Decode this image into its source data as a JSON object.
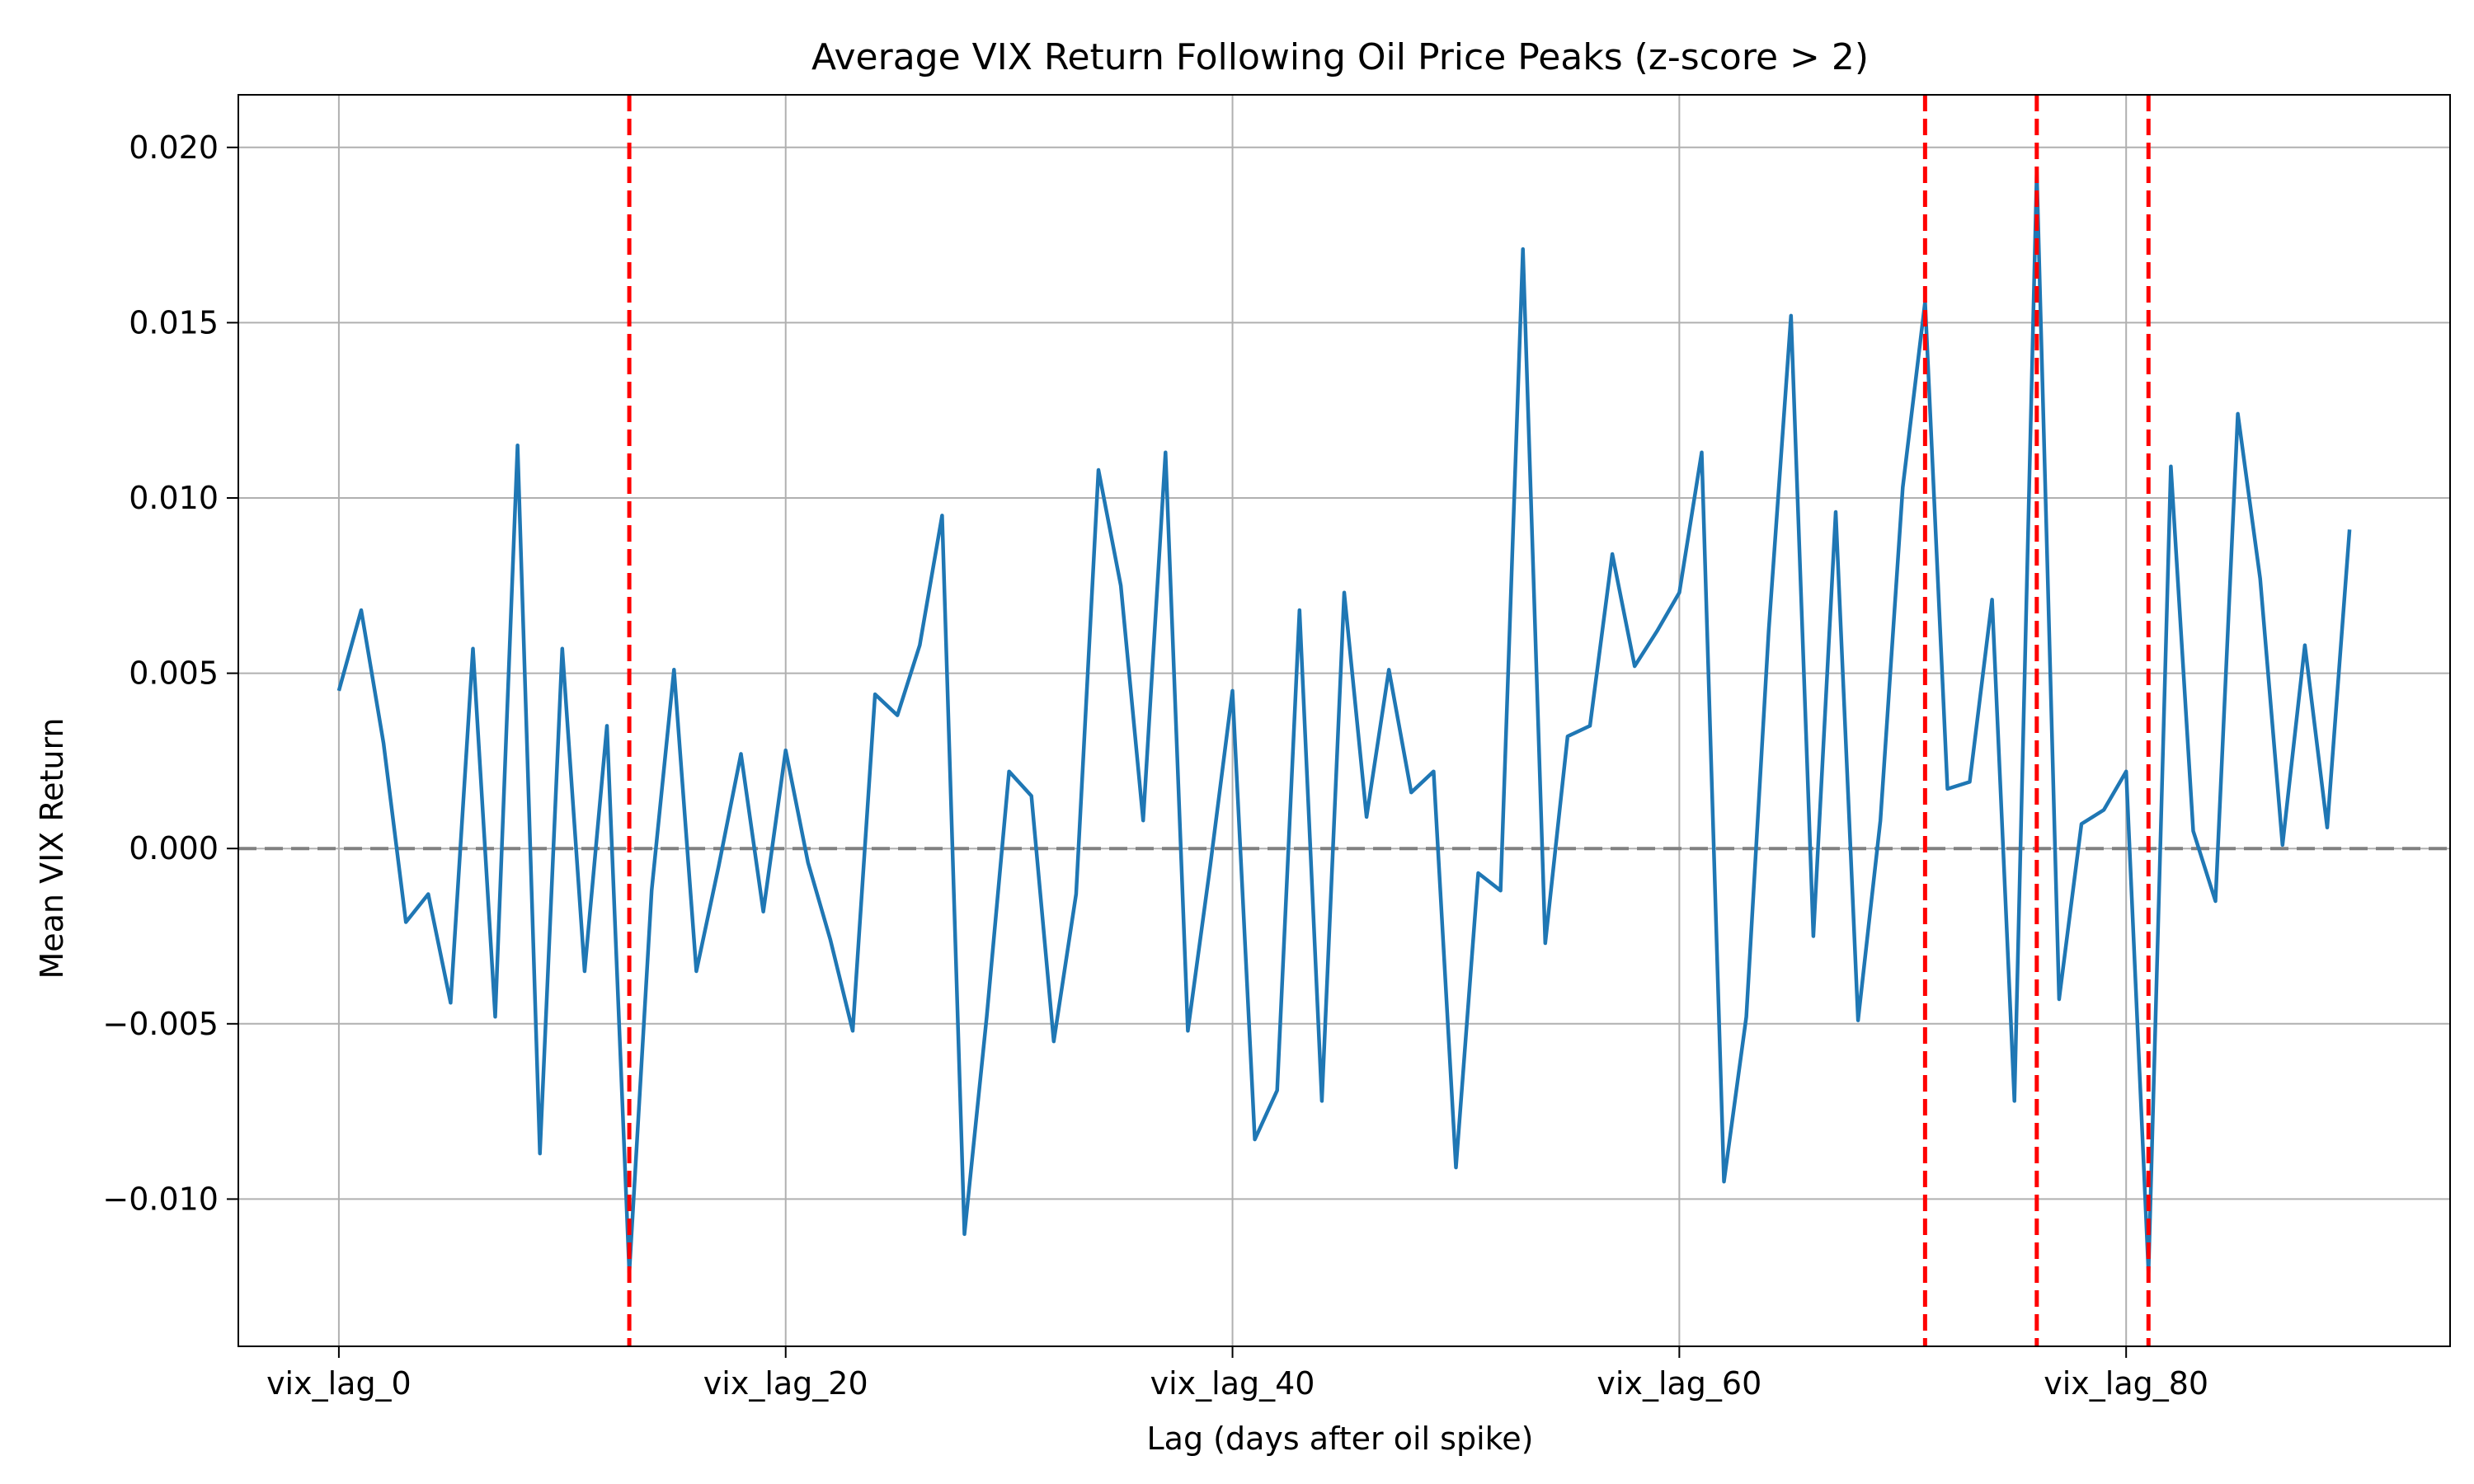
{
  "chart_data": {
    "type": "line",
    "title": "Average VIX Return Following Oil Price Peaks (z-score > 2)",
    "xlabel": "Lag (days after oil spike)",
    "ylabel": "Mean VIX Return",
    "xlim": [
      -4.5,
      94.5
    ],
    "ylim": [
      -0.0142,
      0.0215
    ],
    "grid": true,
    "x_ticks": [
      {
        "value": 0,
        "label": "vix_lag_0"
      },
      {
        "value": 20,
        "label": "vix_lag_20"
      },
      {
        "value": 40,
        "label": "vix_lag_40"
      },
      {
        "value": 60,
        "label": "vix_lag_60"
      },
      {
        "value": 80,
        "label": "vix_lag_80"
      }
    ],
    "y_ticks": [
      {
        "value": -0.01,
        "label": "−0.010"
      },
      {
        "value": -0.005,
        "label": "−0.005"
      },
      {
        "value": 0.0,
        "label": "0.000"
      },
      {
        "value": 0.005,
        "label": "0.005"
      },
      {
        "value": 0.01,
        "label": "0.010"
      },
      {
        "value": 0.015,
        "label": "0.015"
      },
      {
        "value": 0.02,
        "label": "0.020"
      }
    ],
    "colors": {
      "line": "#1f77b4",
      "vline": "#ff0000",
      "hline": "#808080",
      "grid": "#b0b0b0"
    },
    "reference_line_y": 0,
    "vertical_markers": [
      13,
      71,
      76,
      81
    ],
    "series": [
      {
        "values": [
          0.0045,
          0.0068,
          0.003,
          -0.0021,
          -0.0013,
          -0.0044,
          0.0057,
          -0.0048,
          0.0115,
          -0.0087,
          0.0057,
          -0.0035,
          0.0035,
          -0.0121,
          -0.0012,
          0.0051,
          -0.0035,
          -0.0005,
          0.0027,
          -0.0018,
          0.0028,
          -0.0004,
          -0.0026,
          -0.0052,
          0.0044,
          0.0038,
          0.0058,
          0.0095,
          -0.011,
          -0.0048,
          0.0022,
          0.0015,
          -0.0055,
          -0.0013,
          0.0108,
          0.0075,
          0.0008,
          0.0113,
          -0.0052,
          -0.0005,
          0.0045,
          -0.0083,
          -0.0069,
          0.0068,
          -0.0072,
          0.0073,
          0.0009,
          0.0051,
          0.0016,
          0.0022,
          -0.0091,
          -0.0007,
          -0.0012,
          0.0171,
          -0.0027,
          0.0032,
          0.0035,
          0.0084,
          0.0052,
          0.0062,
          0.0073,
          0.0113,
          -0.0095,
          -0.0048,
          0.0062,
          0.0152,
          -0.0025,
          0.0096,
          -0.0049,
          0.0008,
          0.0103,
          0.0156,
          0.0017,
          0.0019,
          0.0071,
          -0.0072,
          0.0193,
          -0.0043,
          0.0007,
          0.0011,
          0.0022,
          -0.0121,
          0.0109,
          0.0005,
          -0.0015,
          0.0124,
          0.0077,
          0.0001,
          0.0058,
          0.0006,
          0.0091
        ]
      }
    ]
  }
}
